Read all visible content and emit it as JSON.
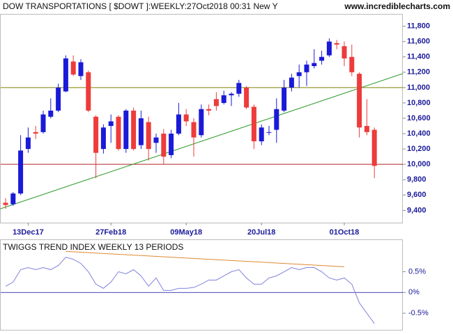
{
  "chart_data": [
    {
      "type": "candlestick",
      "title": "DOW TRANSPORTATIONS [ $DOWT ]:WEEKLY:27Oct2018 00:31 New Y",
      "watermark": "www.incrediblecharts.com",
      "categories": [
        null,
        null,
        null,
        "13Dec17",
        null,
        null,
        null,
        null,
        null,
        null,
        null,
        null,
        null,
        null,
        "27Feb18",
        null,
        null,
        null,
        null,
        null,
        null,
        null,
        null,
        null,
        "09May18",
        null,
        null,
        null,
        null,
        null,
        null,
        null,
        null,
        null,
        "20Jul18",
        null,
        null,
        null,
        null,
        null,
        null,
        null,
        null,
        null,
        null,
        "01Oct18",
        null,
        null,
        null,
        null
      ],
      "open": [
        9500,
        9480,
        9620,
        10200,
        10420,
        10420,
        10620,
        10700,
        10950,
        11340,
        11150,
        11200,
        10620,
        10200,
        10500,
        10620,
        10200,
        10700,
        10250,
        10550,
        10280,
        10400,
        10120,
        10400,
        10650,
        10550,
        10380,
        10720,
        10850,
        10800,
        10900,
        10920,
        11000,
        10750,
        10300,
        10420,
        10450,
        10700,
        11000,
        11150,
        11200,
        11280,
        11350,
        11420,
        11580,
        11540,
        11400,
        11180,
        10500,
        10450
      ],
      "high": [
        9560,
        9640,
        10380,
        10480,
        10500,
        10700,
        10860,
        11050,
        11420,
        11420,
        11370,
        11220,
        10640,
        10520,
        10650,
        10640,
        10720,
        10740,
        10700,
        10620,
        10400,
        10460,
        10450,
        10800,
        10720,
        10600,
        10780,
        10780,
        10940,
        10960,
        10940,
        11100,
        11020,
        10780,
        10520,
        10500,
        10860,
        11100,
        11180,
        11300,
        11350,
        11500,
        11480,
        11640,
        11620,
        11600,
        11560,
        11200,
        10850,
        10480
      ],
      "low": [
        9420,
        9460,
        9600,
        10150,
        10330,
        10400,
        10600,
        10680,
        10940,
        11150,
        11100,
        10680,
        9820,
        10140,
        10280,
        10180,
        10150,
        10180,
        10200,
        10050,
        10150,
        10000,
        10080,
        10380,
        10500,
        10100,
        10350,
        10640,
        10700,
        10780,
        10760,
        10880,
        10720,
        10200,
        10250,
        10380,
        10280,
        10680,
        10950,
        11000,
        11020,
        11250,
        11300,
        11400,
        11500,
        11280,
        11150,
        10350,
        10380,
        9820
      ],
      "close": [
        9470,
        9620,
        10180,
        10350,
        10400,
        10650,
        10700,
        11000,
        11380,
        11170,
        11330,
        10700,
        10150,
        10480,
        10560,
        10200,
        10700,
        10200,
        10600,
        10200,
        10350,
        10100,
        10400,
        10650,
        10560,
        10350,
        10720,
        10700,
        10760,
        10900,
        10920,
        11060,
        10740,
        10300,
        10480,
        10420,
        10720,
        11000,
        11130,
        11200,
        11300,
        11320,
        11400,
        11600,
        11560,
        11380,
        11200,
        10480,
        10420,
        9980
      ],
      "up_color": "#1a1ad8",
      "down_color": "#ee3b3b",
      "ylim": [
        9240,
        11960
      ],
      "yticks": [
        {
          "value": 9400,
          "label": "9,400"
        },
        {
          "value": 9600,
          "label": "9,600"
        },
        {
          "value": 9800,
          "label": "9,800"
        },
        {
          "value": 10000,
          "label": "10,000"
        },
        {
          "value": 10200,
          "label": "10,200"
        },
        {
          "value": 10400,
          "label": "10,400"
        },
        {
          "value": 10600,
          "label": "10,600"
        },
        {
          "value": 10800,
          "label": "10,800"
        },
        {
          "value": 11000,
          "label": "11,000"
        },
        {
          "value": 11200,
          "label": "11,200"
        },
        {
          "value": 11400,
          "label": "11,400"
        },
        {
          "value": 11600,
          "label": "11,600"
        },
        {
          "value": 11800,
          "label": "11,800"
        }
      ],
      "reference_lines": [
        {
          "value": 11000,
          "color": "#808000"
        },
        {
          "value": 10000,
          "color": "#b22222"
        }
      ],
      "trend_line": {
        "x": [
          -0.7,
          53
        ],
        "y": [
          9420,
          11190
        ],
        "color": "#2e9e2e"
      }
    },
    {
      "type": "line",
      "title": "TWIGGS TREND INDEX WEEKLY 13 PERIODS",
      "values": [
        0.15,
        0.25,
        0.55,
        0.6,
        0.55,
        0.6,
        0.55,
        0.65,
        0.85,
        0.8,
        0.7,
        0.5,
        0.2,
        0.1,
        0.25,
        0.5,
        0.45,
        0.55,
        0.4,
        0.15,
        0.35,
        0.05,
        0.05,
        0.1,
        0.1,
        0.12,
        0.2,
        0.3,
        0.3,
        0.4,
        0.5,
        0.55,
        0.35,
        0.2,
        0.2,
        0.35,
        0.4,
        0.5,
        0.6,
        0.55,
        0.6,
        0.6,
        0.5,
        0.35,
        0.3,
        0.35,
        0.2,
        -0.25,
        -0.5,
        -0.75
      ],
      "color": "#8080e0",
      "ylim": [
        -0.9,
        1.28
      ],
      "yticks": [
        {
          "value": 0.5,
          "label": "0.5%"
        },
        {
          "value": 0,
          "label": "0%"
        },
        {
          "value": -0.5,
          "label": "-0.5%"
        }
      ],
      "reference_lines": [
        {
          "value": 0,
          "color": "#4a4ab8"
        }
      ],
      "trend_line": {
        "x": [
          8,
          45
        ],
        "y": [
          0.99,
          0.62
        ],
        "color": "#e08830"
      }
    }
  ]
}
